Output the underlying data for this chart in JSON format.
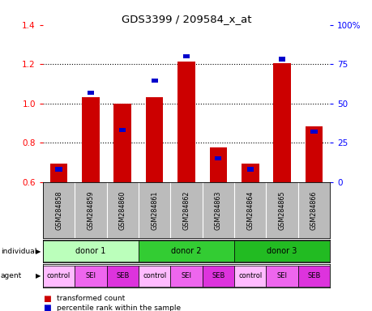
{
  "title": "GDS3399 / 209584_x_at",
  "samples": [
    "GSM284858",
    "GSM284859",
    "GSM284860",
    "GSM284861",
    "GSM284862",
    "GSM284863",
    "GSM284864",
    "GSM284865",
    "GSM284866"
  ],
  "red_values": [
    0.695,
    1.03,
    1.0,
    1.03,
    1.215,
    0.775,
    0.695,
    1.205,
    0.885
  ],
  "blue_values": [
    0.665,
    1.055,
    0.865,
    1.115,
    1.24,
    0.72,
    0.665,
    1.225,
    0.855
  ],
  "ylim_left": [
    0.6,
    1.4
  ],
  "ylim_right": [
    0,
    100
  ],
  "yticks_left": [
    0.6,
    0.8,
    1.0,
    1.2,
    1.4
  ],
  "yticks_right": [
    0,
    25,
    50,
    75,
    100
  ],
  "ytick_labels_right": [
    "0",
    "25",
    "50",
    "75",
    "100%"
  ],
  "bar_bottom": 0.6,
  "donors": [
    {
      "label": "donor 1",
      "span": [
        0,
        3
      ],
      "color": "#bbffbb"
    },
    {
      "label": "donor 2",
      "span": [
        3,
        6
      ],
      "color": "#33cc33"
    },
    {
      "label": "donor 3",
      "span": [
        6,
        9
      ],
      "color": "#22bb22"
    }
  ],
  "agents": [
    "control",
    "SEI",
    "SEB",
    "control",
    "SEI",
    "SEB",
    "control",
    "SEI",
    "SEB"
  ],
  "agent_colors": [
    "#ffbbff",
    "#ee66ee",
    "#dd33dd",
    "#ffbbff",
    "#ee66ee",
    "#dd33dd",
    "#ffbbff",
    "#ee66ee",
    "#dd33dd"
  ],
  "red_color": "#cc0000",
  "blue_color": "#0000cc",
  "bg_color": "#ffffff",
  "sample_bg_color": "#bbbbbb"
}
